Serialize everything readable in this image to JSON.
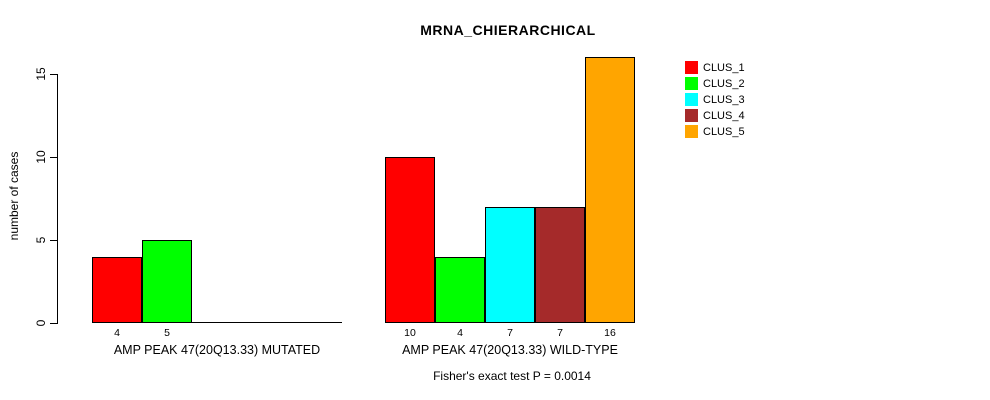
{
  "chart_data": {
    "type": "bar",
    "title": "MRNA_CHIERARCHICAL",
    "ylabel": "number of cases",
    "xlabel": "",
    "yticks": [
      0,
      5,
      10,
      15
    ],
    "ylim": [
      0,
      16
    ],
    "grid": false,
    "legend_position": "right-outside",
    "legend": [
      {
        "label": "CLUS_1",
        "color": "#FF0000"
      },
      {
        "label": "CLUS_2",
        "color": "#00FF00"
      },
      {
        "label": "CLUS_3",
        "color": "#00FFFF"
      },
      {
        "label": "CLUS_4",
        "color": "#A52A2A"
      },
      {
        "label": "CLUS_5",
        "color": "#FFA500"
      }
    ],
    "groups": [
      {
        "label": "AMP PEAK 47(20Q13.33) MUTATED",
        "values": [
          4,
          5,
          0,
          0,
          0
        ]
      },
      {
        "label": "AMP PEAK 47(20Q13.33) WILD-TYPE",
        "values": [
          10,
          4,
          7,
          7,
          16
        ]
      }
    ],
    "annotation": "Fisher's exact test P = 0.0014",
    "colors": {
      "axis": "#000000",
      "background": "#FFFFFF",
      "text": "#000000"
    }
  }
}
